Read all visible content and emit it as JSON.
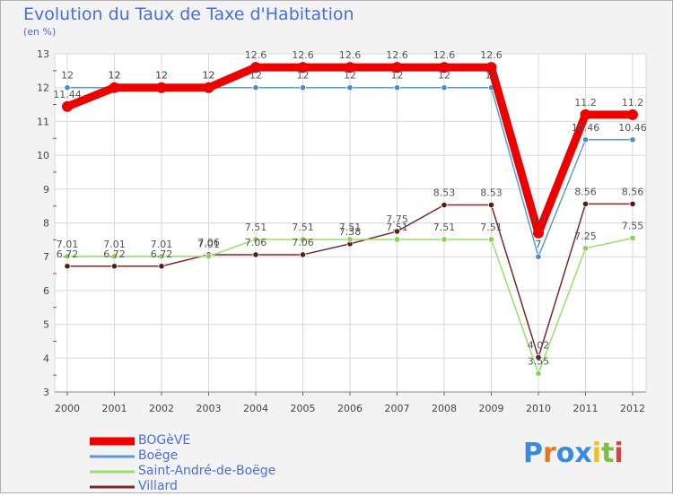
{
  "title": "Evolution du Taux de Taxe d'Habitation",
  "unit": "(en %)",
  "brand": {
    "letters": [
      "P",
      "r",
      "o",
      "x",
      "i",
      "t",
      "i"
    ],
    "colors": [
      "#3a8be0",
      "#e07a20",
      "#3a8be0",
      "#3a8be0",
      "#f0c020",
      "#7ac040",
      "#e04040"
    ]
  },
  "chart_data": {
    "type": "line",
    "title": "Evolution du Taux de Taxe d'Habitation",
    "ylabel": "(en %)",
    "xlabel": "",
    "x": [
      "2000",
      "2001",
      "2002",
      "2003",
      "2004",
      "2005",
      "2006",
      "2007",
      "2008",
      "2009",
      "2010",
      "2011",
      "2012"
    ],
    "ylim": [
      3,
      13
    ],
    "yticks": [
      "3",
      "4",
      "5",
      "6",
      "7",
      "8",
      "9",
      "10",
      "11",
      "12",
      "13"
    ],
    "grid": true,
    "legend": "bottom-left",
    "series": [
      {
        "name": "BOGèVE",
        "color": "#ee0000",
        "values": [
          11.44,
          12,
          12,
          12,
          12.6,
          12.6,
          12.6,
          12.6,
          12.6,
          12.6,
          7.7,
          11.2,
          11.2
        ],
        "labels": [
          "11.44",
          "12",
          "12",
          "12",
          "12.6",
          "12.6",
          "12.6",
          "12.6",
          "12.6",
          "12.6",
          "7.7",
          "11.2",
          "11.2"
        ]
      },
      {
        "name": "Boëge",
        "color": "#5b9bd5",
        "values": [
          12,
          12,
          12,
          12,
          12,
          12,
          12,
          12,
          12,
          12,
          7,
          10.46,
          10.46
        ],
        "labels": [
          "12",
          "12",
          "12",
          "12",
          "12",
          "12",
          "12",
          "12",
          "12",
          "12",
          "7",
          "10.46",
          "10.46"
        ]
      },
      {
        "name": "Saint-André-de-Boëge",
        "color": "#99e06a",
        "values": [
          7.01,
          7.01,
          7.01,
          7.01,
          7.51,
          7.51,
          7.51,
          7.51,
          7.51,
          7.51,
          3.55,
          7.25,
          7.55
        ],
        "labels": [
          "7.01",
          "7.01",
          "7.01",
          "7.01",
          "7.51",
          "7.51",
          "7.51",
          "7.51",
          "7.51",
          "7.51",
          "3.55",
          "7.25",
          "7.55"
        ]
      },
      {
        "name": "Villard",
        "color": "#7a2828",
        "values": [
          6.72,
          6.72,
          6.72,
          7.06,
          7.06,
          7.06,
          7.38,
          7.75,
          8.53,
          8.53,
          4.02,
          8.56,
          8.56
        ],
        "labels": [
          "6.72",
          "6.72",
          "6.72",
          "7.06",
          "7.06",
          "7.06",
          "7.38",
          "7.75",
          "8.53",
          "8.53",
          "4.02",
          "8.56",
          "8.56"
        ]
      }
    ]
  }
}
